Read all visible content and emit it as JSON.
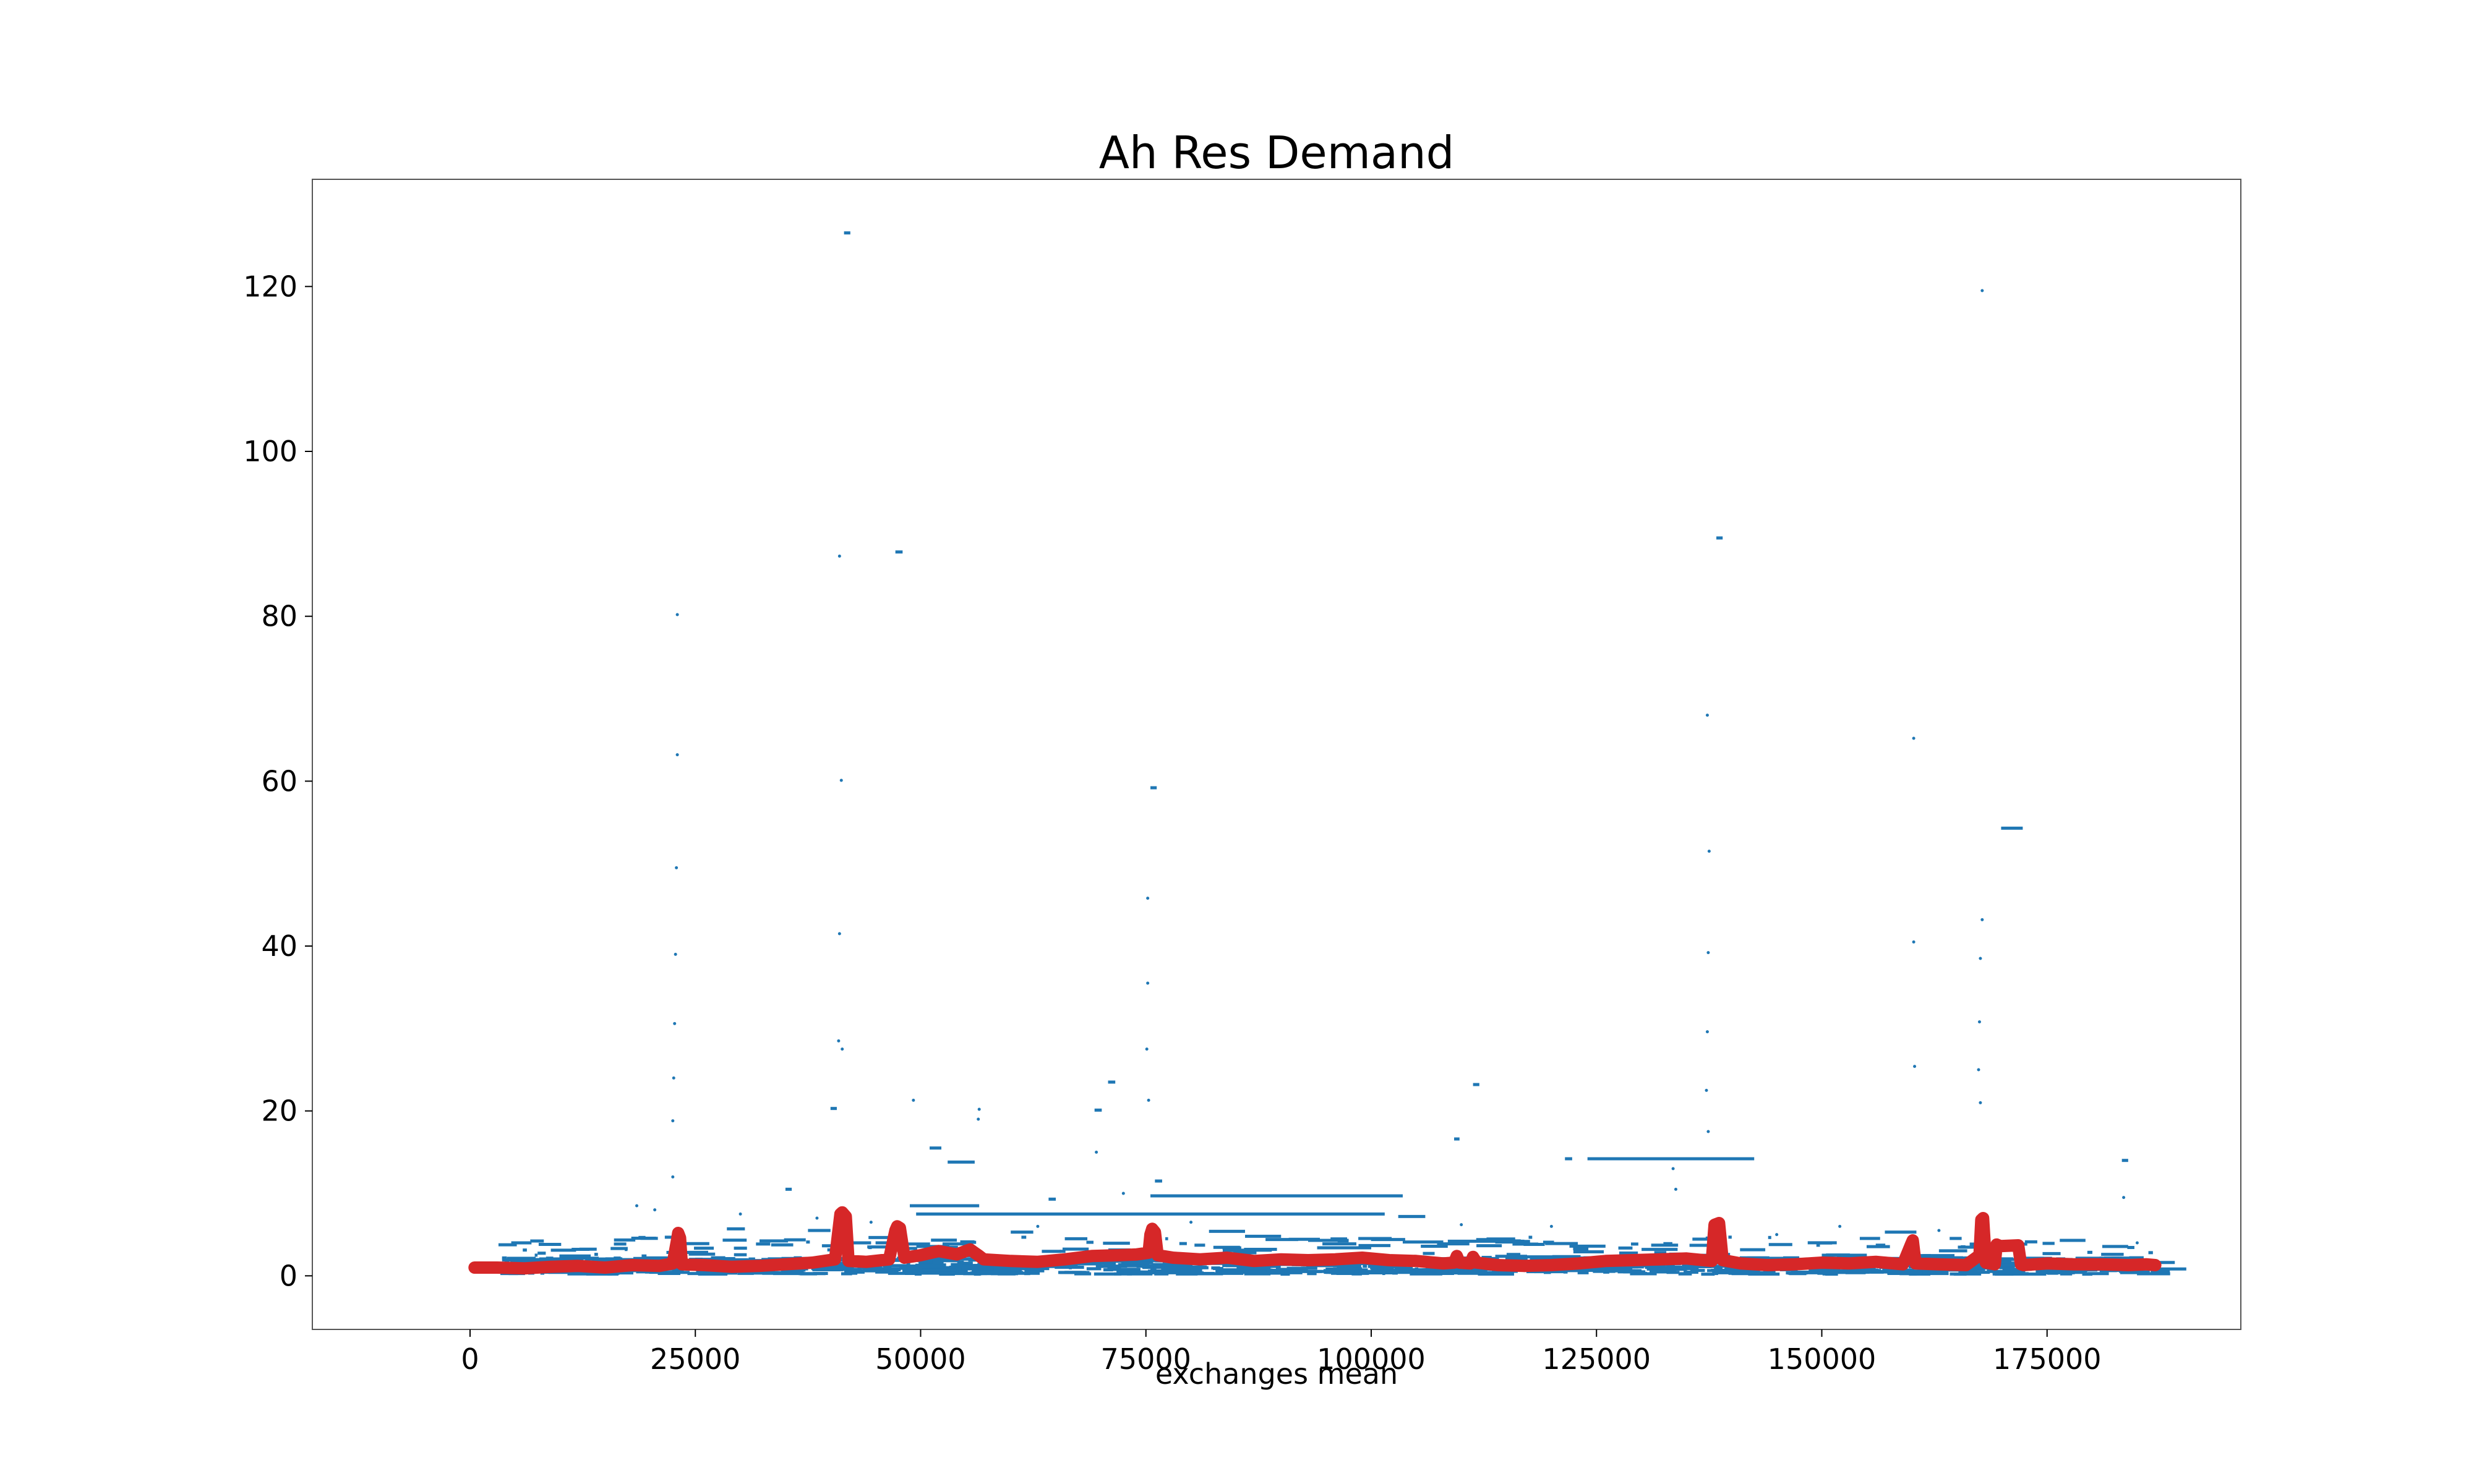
{
  "chart_data": {
    "type": "scatter",
    "title": "Ah Res Demand",
    "xlabel": "exchanges mean",
    "ylabel": "",
    "xlim": [
      -17500,
      196500
    ],
    "ylim": [
      -6.5,
      133
    ],
    "xticks": [
      0,
      25000,
      50000,
      75000,
      100000,
      125000,
      150000,
      175000
    ],
    "xtick_labels": [
      "0",
      "25000",
      "50000",
      "75000",
      "100000",
      "125000",
      "150000",
      "175000"
    ],
    "yticks": [
      0,
      20,
      40,
      60,
      80,
      100,
      120
    ],
    "ytick_labels": [
      "0",
      "20",
      "40",
      "60",
      "80",
      "100",
      "120"
    ],
    "grid": false,
    "colors": {
      "scatter": "#1f77b4",
      "line": "#d62728"
    },
    "series": [
      {
        "kind": "horizontal-segments",
        "segments": [
          [
            41500,
            42200,
            126.5
          ],
          [
            47200,
            48000,
            87.8
          ],
          [
            138300,
            139000,
            89.5
          ],
          [
            75500,
            76200,
            59.2
          ],
          [
            169900,
            172300,
            54.3
          ],
          [
            70800,
            71600,
            23.5
          ],
          [
            111300,
            112000,
            23.2
          ],
          [
            40000,
            40700,
            20.3
          ],
          [
            69300,
            70100,
            20.1
          ],
          [
            109200,
            109800,
            16.6
          ],
          [
            51000,
            52300,
            15.5
          ],
          [
            124000,
            142500,
            14.2
          ],
          [
            53000,
            56000,
            13.8
          ],
          [
            121500,
            122300,
            14.2
          ],
          [
            183300,
            184000,
            14.0
          ],
          [
            76000,
            76800,
            11.5
          ],
          [
            75500,
            103500,
            9.7
          ],
          [
            48800,
            56500,
            8.5
          ],
          [
            49500,
            101500,
            7.5
          ],
          [
            103000,
            106000,
            7.2
          ],
          [
            64200,
            65000,
            9.3
          ],
          [
            35000,
            35700,
            10.5
          ],
          [
            37500,
            40000,
            5.5
          ],
          [
            93000,
            97500,
            4.3
          ],
          [
            103500,
            108000,
            4.1
          ],
          [
            108500,
            117000,
            4.2
          ],
          [
            157000,
            160500,
            5.3
          ],
          [
            122000,
            126000,
            3.6
          ],
          [
            28500,
            30500,
            5.7
          ],
          [
            60000,
            62500,
            5.3
          ],
          [
            82000,
            86000,
            5.4
          ],
          [
            130000,
            134000,
            3.2
          ],
          [
            174500,
            176500,
            2.7
          ],
          [
            181000,
            183500,
            2.6
          ],
          [
            45000,
            48000,
            4.0
          ],
          [
            66000,
            68500,
            4.5
          ],
          [
            86000,
            90000,
            4.8
          ],
          [
            94000,
            100000,
            3.4
          ],
          [
            116000,
            121000,
            2.3
          ],
          [
            142000,
            147000,
            2.1
          ],
          [
            150000,
            155000,
            2.5
          ],
          [
            161000,
            166000,
            2.1
          ]
        ],
        "points": [
          [
            23000,
            80.2
          ],
          [
            23000,
            63.2
          ],
          [
            22900,
            49.5
          ],
          [
            22800,
            39.0
          ],
          [
            22700,
            30.6
          ],
          [
            22600,
            24.0
          ],
          [
            22500,
            18.8
          ],
          [
            22500,
            12.0
          ],
          [
            41000,
            87.3
          ],
          [
            41200,
            60.1
          ],
          [
            41000,
            41.5
          ],
          [
            40900,
            28.5
          ],
          [
            41300,
            27.5
          ],
          [
            75200,
            45.8
          ],
          [
            75200,
            35.5
          ],
          [
            75100,
            27.5
          ],
          [
            75300,
            21.3
          ],
          [
            137300,
            68.0
          ],
          [
            137500,
            51.5
          ],
          [
            137400,
            39.2
          ],
          [
            137300,
            29.6
          ],
          [
            137200,
            22.5
          ],
          [
            137400,
            17.5
          ],
          [
            160200,
            65.2
          ],
          [
            160200,
            40.5
          ],
          [
            160300,
            25.4
          ],
          [
            167800,
            119.5
          ],
          [
            167800,
            43.2
          ],
          [
            167600,
            38.5
          ],
          [
            167500,
            30.8
          ],
          [
            167400,
            25.0
          ],
          [
            167600,
            21.0
          ],
          [
            49200,
            21.3
          ],
          [
            56500,
            20.2
          ],
          [
            56400,
            19.0
          ],
          [
            18500,
            8.5
          ],
          [
            20500,
            8.0
          ],
          [
            30000,
            7.5
          ],
          [
            38500,
            7.0
          ],
          [
            40500,
            6.0
          ],
          [
            44500,
            6.5
          ],
          [
            63000,
            6.0
          ],
          [
            69500,
            15.0
          ],
          [
            72500,
            10.0
          ],
          [
            80000,
            6.5
          ],
          [
            110000,
            6.2
          ],
          [
            120000,
            6.0
          ],
          [
            133500,
            13.0
          ],
          [
            133800,
            10.5
          ],
          [
            145000,
            5.0
          ],
          [
            152000,
            6.0
          ],
          [
            163000,
            5.5
          ],
          [
            183500,
            9.5
          ],
          [
            185000,
            4.0
          ]
        ]
      },
      {
        "kind": "thick-line",
        "x": [
          500,
          3000,
          6000,
          9000,
          12000,
          15000,
          18000,
          21000,
          22500,
          23000,
          23100,
          23300,
          23500,
          26000,
          29000,
          32000,
          35000,
          38000,
          40500,
          41100,
          41300,
          41700,
          42000,
          44000,
          46500,
          47200,
          47400,
          47700,
          48200,
          50000,
          52000,
          54000,
          55500,
          56000,
          56400,
          57000,
          60000,
          63000,
          66000,
          69000,
          72000,
          74000,
          75300,
          75500,
          75700,
          76000,
          76300,
          78000,
          81000,
          84000,
          87000,
          90000,
          93000,
          96000,
          99000,
          102000,
          105000,
          108000,
          109200,
          109500,
          109800,
          111000,
          111300,
          111700,
          114000,
          117000,
          120000,
          123000,
          126000,
          129000,
          132000,
          135000,
          137800,
          138100,
          138600,
          139000,
          141000,
          144000,
          147000,
          150000,
          153000,
          156000,
          159000,
          159900,
          160100,
          160400,
          163000,
          166000,
          167500,
          167700,
          167900,
          168200,
          169200,
          169400,
          169800,
          171800,
          172100,
          172400,
          175000,
          178000,
          181000,
          184000,
          186000,
          187000
        ],
        "y": [
          1.0,
          1.0,
          0.9,
          1.1,
          1.2,
          1.0,
          1.3,
          1.2,
          1.5,
          4.5,
          5.2,
          4.6,
          1.4,
          1.3,
          1.1,
          1.2,
          1.4,
          1.6,
          2.0,
          7.5,
          7.7,
          7.2,
          1.8,
          1.7,
          2.0,
          5.5,
          6.0,
          5.8,
          2.2,
          2.5,
          3.0,
          2.6,
          3.2,
          2.8,
          2.5,
          2.0,
          1.8,
          1.7,
          2.0,
          2.4,
          2.5,
          2.6,
          2.8,
          5.0,
          5.7,
          5.3,
          2.5,
          2.2,
          2.0,
          2.2,
          1.8,
          2.0,
          1.9,
          2.0,
          2.2,
          1.9,
          1.8,
          1.5,
          1.6,
          2.4,
          1.6,
          1.5,
          2.3,
          1.6,
          1.3,
          1.2,
          1.3,
          1.5,
          1.8,
          1.9,
          2.0,
          2.1,
          1.8,
          6.2,
          6.4,
          1.9,
          1.5,
          1.3,
          1.4,
          1.6,
          1.5,
          1.7,
          1.4,
          3.8,
          4.3,
          1.5,
          1.4,
          1.3,
          2.5,
          6.8,
          7.0,
          1.6,
          1.4,
          3.8,
          3.6,
          3.7,
          1.4,
          1.3,
          1.5,
          1.4,
          1.4,
          1.3,
          1.4,
          1.3
        ]
      }
    ]
  }
}
